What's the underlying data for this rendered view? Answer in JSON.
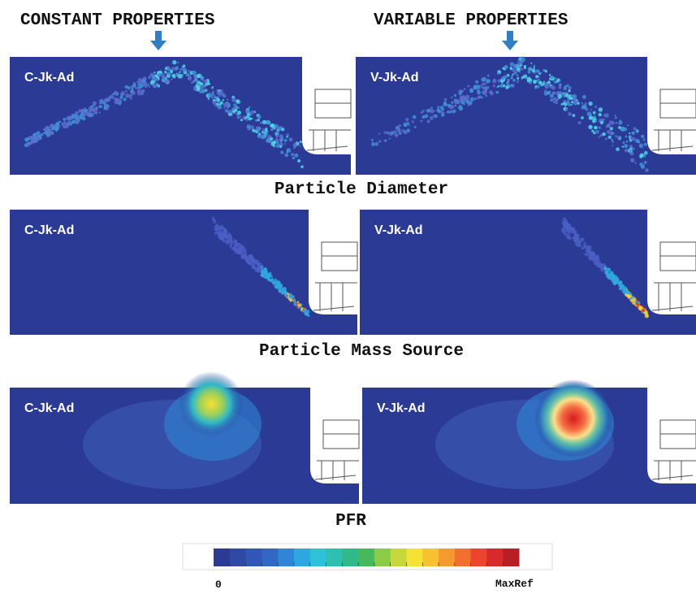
{
  "columns": [
    {
      "title": "CONSTANT PROPERTIES"
    },
    {
      "title": "VARIABLE PROPERTIES"
    }
  ],
  "rows": [
    {
      "caption": "Particle Diameter",
      "panels": [
        "C-Jk-Ad",
        "V-Jk-Ad"
      ]
    },
    {
      "caption": "Particle Mass Source",
      "panels": [
        "C-Jk-Ad",
        "V-Jk-Ad"
      ]
    },
    {
      "caption": "PFR",
      "panels": [
        "C-Jk-Ad",
        "V-Jk-Ad"
      ]
    }
  ],
  "colorbar": {
    "min_label": "0",
    "max_label": "MaxRef"
  }
}
